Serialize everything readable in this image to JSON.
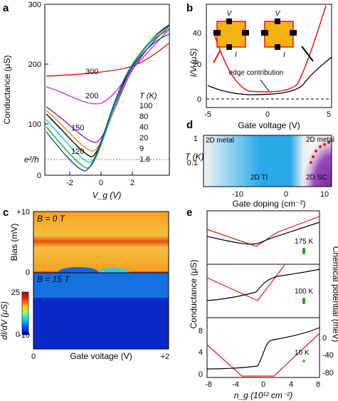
{
  "panels": {
    "a": {
      "label": "a",
      "ylabel": "Conductance (μS)",
      "xlabel": "V_g (V)",
      "yticks": [
        "0",
        "100",
        "200",
        "300"
      ],
      "xticks": [
        "-2",
        "0",
        "2"
      ],
      "ref_label": "e²/h",
      "legend_title": "T (K)",
      "curve_labels": [
        "300",
        "200",
        "150",
        "120",
        "100",
        "80",
        "40",
        "20",
        "9",
        "1.6"
      ]
    },
    "b": {
      "label": "b",
      "ylabel": "I/V (μS)",
      "xlabel": "Gate voltage (V)",
      "yticks": [
        "0",
        "20",
        "40"
      ],
      "xticks": [
        "-5",
        "0",
        "5"
      ],
      "annotation": "edge contribution",
      "inset_labels": [
        "V",
        "I",
        "V",
        "I"
      ]
    },
    "c": {
      "label": "c",
      "ylabel_top": "Bias  (mV)",
      "ylabel_bottom": "dI/dV (μS)",
      "xlabel": "Gate voltage (V)",
      "top_field": "B = 0 T",
      "bottom_field": "B = 15 T",
      "yticks": [
        "+10",
        "0",
        "-10"
      ],
      "xticks": [
        "0",
        "+2"
      ],
      "colorbar_ticks": [
        "25",
        "0"
      ]
    },
    "d": {
      "label": "d",
      "ylabel": "T (K)",
      "xlabel": "Gate doping (cm⁻²)",
      "yticks": [
        "1",
        "0.1"
      ],
      "xticks": [
        "-10",
        "0",
        "10"
      ],
      "regions": [
        "2D metal",
        "2D metal",
        "2D TI",
        "2D SC"
      ]
    },
    "e": {
      "label": "e",
      "ylabel_left": "Conductance (μS)",
      "ylabel_right": "Chemical potential (meV)",
      "xlabel": "n_g (10¹² cm⁻²)",
      "xticks": [
        "-8",
        "-4",
        "0",
        "4",
        "8"
      ],
      "left_ticks": [
        "0",
        "4",
        "8"
      ],
      "right_ticks": [
        "0",
        "-40",
        "-80"
      ],
      "temps": [
        "175 K",
        "100 K",
        "10 K"
      ]
    }
  },
  "colors": {
    "red": "#e8141b",
    "magenta": "#e02ad8",
    "orange": "#f0891a",
    "black": "#000000",
    "cyan": "#22c8e0",
    "purple": "#7a2ad0",
    "green": "#1aa81a",
    "blue": "#1a3ad8",
    "gold": "#f2b311",
    "ti_blue": "#2aa8e8",
    "sc_purple": "#8a3aa8"
  }
}
